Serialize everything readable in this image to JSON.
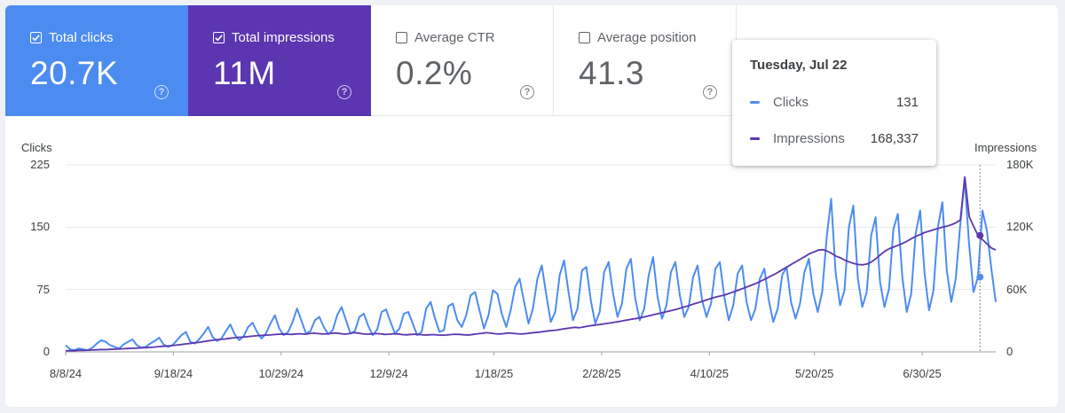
{
  "metrics": {
    "clicks": {
      "label": "Total clicks",
      "value": "20.7K",
      "checked": true,
      "color": "#4c8cf0"
    },
    "impressions": {
      "label": "Total impressions",
      "value": "11M",
      "checked": true,
      "color": "#5b36b0"
    },
    "ctr": {
      "label": "Average CTR",
      "value": "0.2%",
      "checked": false
    },
    "position": {
      "label": "Average position",
      "value": "41.3",
      "checked": false
    }
  },
  "help_glyph": "?",
  "tooltip": {
    "date": "Tuesday, Jul 22",
    "clicks_label": "Clicks",
    "clicks_value": "131",
    "impressions_label": "Impressions",
    "impressions_value": "168,337"
  },
  "chart_data": {
    "type": "line",
    "left_axis_title": "Clicks",
    "right_axis_title": "Impressions",
    "left_ticks": [
      "225",
      "150",
      "75",
      "0"
    ],
    "right_ticks": [
      "180K",
      "120K",
      "60K",
      "0"
    ],
    "ylim_left": [
      0,
      225
    ],
    "ylim_right": [
      0,
      180000
    ],
    "x_tick_labels": [
      "8/8/24",
      "9/18/24",
      "10/29/24",
      "12/9/24",
      "1/18/25",
      "2/28/25",
      "4/10/25",
      "5/20/25",
      "6/30/25"
    ],
    "x_start": "2024-08-08",
    "x_end": "2025-07-28",
    "hover_date": "2025-07-22",
    "series": [
      {
        "name": "Clicks",
        "color": "#4c8cf0",
        "axis": "left",
        "values": [
          8,
          3,
          2,
          4,
          3,
          2,
          5,
          10,
          14,
          12,
          8,
          6,
          4,
          9,
          12,
          15,
          8,
          5,
          6,
          10,
          13,
          17,
          9,
          6,
          8,
          14,
          20,
          24,
          12,
          10,
          15,
          22,
          30,
          18,
          13,
          16,
          25,
          33,
          21,
          14,
          19,
          30,
          35,
          24,
          16,
          22,
          34,
          44,
          28,
          20,
          24,
          36,
          52,
          37,
          22,
          25,
          38,
          42,
          30,
          21,
          26,
          44,
          54,
          38,
          22,
          25,
          42,
          46,
          31,
          20,
          27,
          48,
          51,
          36,
          22,
          28,
          46,
          48,
          34,
          20,
          24,
          52,
          60,
          40,
          24,
          26,
          55,
          58,
          38,
          30,
          44,
          68,
          72,
          50,
          28,
          44,
          74,
          70,
          46,
          30,
          50,
          78,
          88,
          60,
          34,
          52,
          88,
          104,
          68,
          36,
          48,
          92,
          110,
          72,
          38,
          52,
          98,
          102,
          62,
          34,
          48,
          96,
          108,
          70,
          42,
          58,
          100,
          112,
          64,
          38,
          52,
          92,
          114,
          66,
          40,
          56,
          96,
          108,
          68,
          42,
          54,
          90,
          104,
          62,
          42,
          58,
          100,
          108,
          66,
          38,
          56,
          94,
          104,
          60,
          38,
          52,
          88,
          100,
          62,
          36,
          52,
          92,
          102,
          60,
          40,
          58,
          96,
          112,
          70,
          48,
          72,
          138,
          184,
          96,
          56,
          74,
          150,
          176,
          88,
          54,
          72,
          140,
          162,
          84,
          54,
          76,
          148,
          166,
          90,
          48,
          70,
          142,
          170,
          94,
          50,
          74,
          150,
          180,
          98,
          60,
          88,
          152,
          208,
          130,
          72,
          90,
          170,
          146,
          100,
          60
        ]
      },
      {
        "name": "Impressions",
        "color": "#5b36b0",
        "axis": "right",
        "values": [
          1000,
          1200,
          1100,
          1500,
          1400,
          1600,
          1800,
          2000,
          2200,
          2100,
          2400,
          2600,
          2800,
          3000,
          3200,
          3400,
          3600,
          3800,
          4000,
          4300,
          4600,
          5000,
          5400,
          5600,
          6000,
          6500,
          7000,
          7600,
          8000,
          8600,
          9000,
          9800,
          10500,
          11000,
          11600,
          12000,
          12400,
          13000,
          13600,
          14000,
          14200,
          14600,
          15000,
          15400,
          15800,
          16000,
          16200,
          16600,
          17000,
          17200,
          17000,
          16800,
          17200,
          17400,
          17000,
          17600,
          18000,
          17600,
          17200,
          17400,
          17800,
          18200,
          17600,
          17000,
          17600,
          18400,
          18000,
          17400,
          17000,
          17200,
          17600,
          17400,
          16800,
          17000,
          17400,
          17200,
          16600,
          16400,
          16800,
          17000,
          16600,
          16200,
          16400,
          16600,
          16200,
          16000,
          16200,
          16600,
          17000,
          16800,
          16400,
          16200,
          16800,
          17400,
          17800,
          18400,
          18000,
          17400,
          17200,
          17600,
          18200,
          17800,
          17400,
          17200,
          17600,
          18200,
          18600,
          19000,
          19600,
          20200,
          20600,
          21000,
          21800,
          22400,
          23000,
          23600,
          23200,
          24000,
          24800,
          25400,
          26000,
          26600,
          27200,
          27800,
          28600,
          29200,
          30000,
          30800,
          31600,
          32200,
          33000,
          34000,
          35000,
          36000,
          37000,
          38000,
          39000,
          40000,
          41000,
          42400,
          43600,
          45000,
          46400,
          47600,
          49000,
          50400,
          51800,
          53000,
          54000,
          55000,
          56600,
          58000,
          59600,
          61200,
          62800,
          64400,
          66200,
          68200,
          70200,
          72400,
          74600,
          77000,
          79600,
          82000,
          84600,
          87000,
          89600,
          92000,
          94600,
          96200,
          98000,
          98400,
          96800,
          94600,
          92000,
          90400,
          88000,
          86400,
          85000,
          84000,
          83800,
          84600,
          86800,
          90000,
          93600,
          97000,
          99400,
          101000,
          102600,
          104400,
          106600,
          109000,
          111200,
          113000,
          115000,
          116200,
          117600,
          118800,
          120000,
          121000,
          122400,
          124200,
          127000,
          168337,
          130000,
          121000,
          112000,
          108000,
          104000,
          100000,
          98000
        ]
      }
    ]
  }
}
